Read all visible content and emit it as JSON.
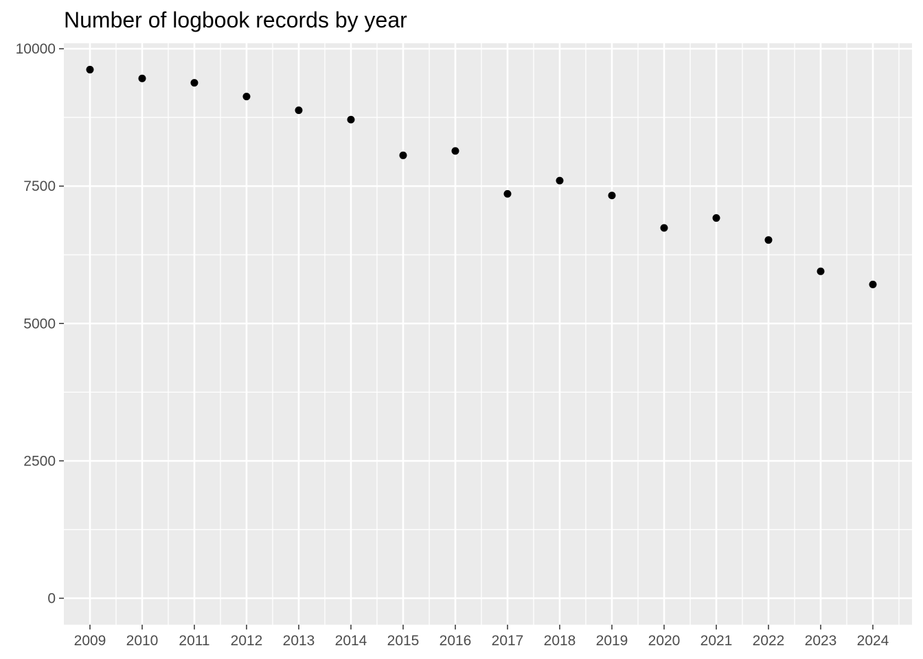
{
  "chart_data": {
    "type": "scatter",
    "title": "Number of logbook records by year",
    "xlabel": "",
    "ylabel": "",
    "x": [
      2009,
      2010,
      2011,
      2012,
      2013,
      2014,
      2015,
      2016,
      2017,
      2018,
      2019,
      2020,
      2021,
      2022,
      2023,
      2024
    ],
    "y": [
      9620,
      9460,
      9380,
      9130,
      8880,
      8710,
      8060,
      8140,
      7360,
      7600,
      7330,
      6740,
      6920,
      6520,
      5950,
      5710
    ],
    "x_tick_labels": [
      "2009",
      "2010",
      "2011",
      "2012",
      "2013",
      "2014",
      "2015",
      "2016",
      "2017",
      "2018",
      "2019",
      "2020",
      "2021",
      "2022",
      "2023",
      "2024"
    ],
    "y_ticks": [
      0,
      2500,
      5000,
      7500,
      10000
    ],
    "y_tick_labels": [
      "0",
      "2500",
      "5000",
      "7500",
      "10000"
    ],
    "xlim": [
      2008.5,
      2024.75
    ],
    "ylim": [
      -481,
      10100
    ],
    "grid": true,
    "legend": "none",
    "point_color": "#000000",
    "panel_color": "#ebebeb",
    "grid_color": "#ffffff"
  }
}
